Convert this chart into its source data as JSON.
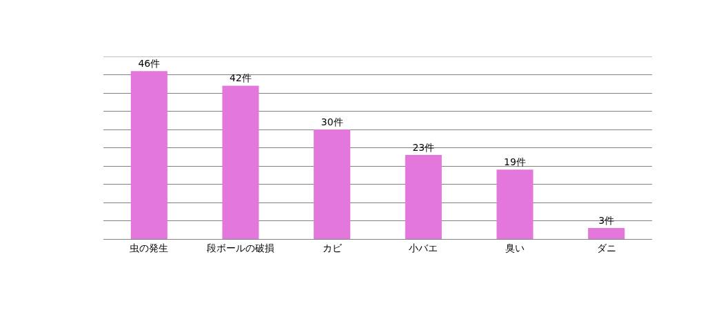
{
  "chart_data": {
    "type": "bar",
    "categories": [
      "虫の発生",
      "段ボールの破損",
      "カビ",
      "小バエ",
      "臭い",
      "ダニ"
    ],
    "values": [
      46,
      42,
      30,
      23,
      19,
      3
    ],
    "value_labels": [
      "46件",
      "42件",
      "30件",
      "23件",
      "19件",
      "3件"
    ],
    "color": "#e377dc",
    "ylim": [
      0,
      50
    ],
    "yticks": [
      {
        "value": 0,
        "label": null
      },
      {
        "value": 5,
        "label": null
      },
      {
        "value": 10,
        "label": null
      },
      {
        "value": 15,
        "label": null
      },
      {
        "value": 20,
        "label": null
      },
      {
        "value": 25,
        "label": null
      },
      {
        "value": 30,
        "label": null
      },
      {
        "value": 35,
        "label": null
      },
      {
        "value": 40,
        "label": null
      },
      {
        "value": 45,
        "label": null
      },
      {
        "value": 50,
        "label": null
      }
    ],
    "grid": "y",
    "tick_labels": "x"
  }
}
